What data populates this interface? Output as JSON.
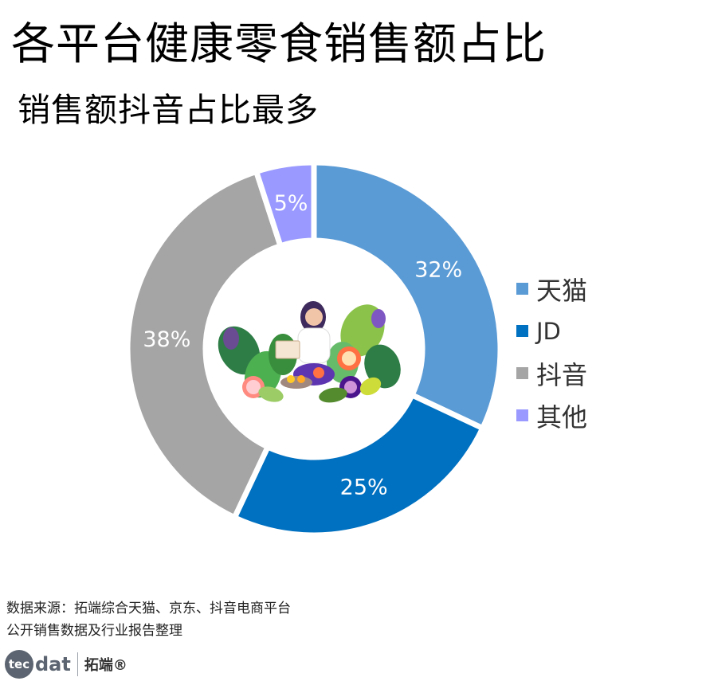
{
  "header": {
    "title": "各平台健康零食销售额占比",
    "subtitle": "销售额抖音占比最多"
  },
  "chart_data": {
    "type": "pie",
    "variant": "donut",
    "title": "各平台健康零食销售额占比",
    "subtitle": "销售额抖音占比最多",
    "unit": "%",
    "legend_position": "right",
    "slices": [
      {
        "label": "天猫",
        "value": 32,
        "display": "32%",
        "color": "#5b9bd5"
      },
      {
        "label": "JD",
        "value": 25,
        "display": "25%",
        "color": "#0070c0"
      },
      {
        "label": "抖音",
        "value": 38,
        "display": "38%",
        "color": "#a5a5a5"
      },
      {
        "label": "其他",
        "value": 5,
        "display": "5%",
        "color": "#9999ff"
      }
    ]
  },
  "footer": {
    "source_line1": "数据来源：拓端综合天猫、京东、抖音电商平台",
    "source_line2": "公开销售数据及行业报告整理",
    "logo_circle": "tec",
    "logo_word": "dat",
    "logo_cn": "拓端®"
  },
  "icons": {
    "center_illustration": "woman-with-vegetables-illustration"
  }
}
